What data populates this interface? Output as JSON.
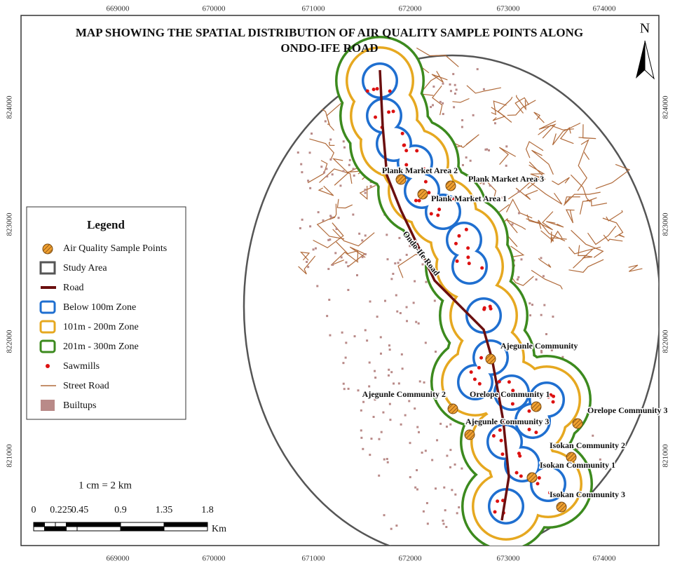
{
  "map": {
    "title": [
      "MAP SHOWING THE SPATIAL DISTRIBUTION OF AIR QUALITY SAMPLE POINTS ALONG",
      "ONDO-IFE ROAD"
    ],
    "north": "N",
    "eastings": [
      669000,
      670000,
      671000,
      672000,
      673000,
      674000
    ],
    "northings": [
      824000,
      823000,
      822000,
      821000
    ],
    "road_label": "Ondo-Ife Road",
    "samples": [
      "Plank Market Area 2",
      "Plank Market Area 3",
      "Plank Market Area 1",
      "Ajegunle Community",
      "Ajegunle Community 2",
      "Orelope Community 1",
      "Orelope Community 3",
      "Ajegunle Community 3",
      "Isokan Community 2",
      "Isokan Community 1",
      "Isokan Community 3"
    ],
    "legend": {
      "title": "Legend",
      "items": [
        "Air Quality Sample Points",
        "Study Area",
        "Road",
        "Below 100m Zone",
        "101m - 200m Zone",
        "201m - 300m Zone",
        "Sawmills",
        "Street Road",
        "Builtups"
      ]
    },
    "scale": {
      "text": "1 cm = 2 km",
      "labels": [
        0,
        0.225,
        0.45,
        0.9,
        1.35,
        1.8
      ],
      "unit": "Km"
    }
  }
}
